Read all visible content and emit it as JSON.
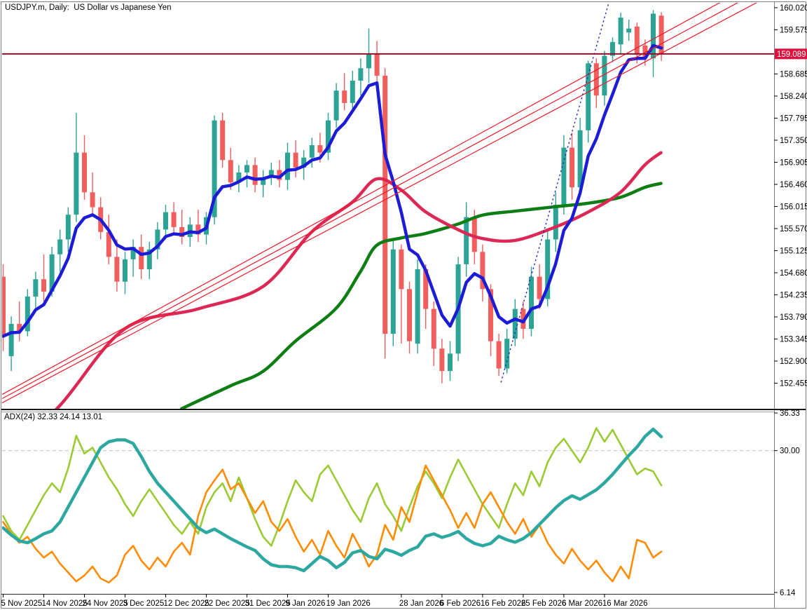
{
  "window": {
    "title": "USDJPY.m, Daily:  US Dollar vs Japanese Yen"
  },
  "indicator": {
    "label": "ADX(24) 32.33 24.14 13.01",
    "name": "ADX",
    "period": 24,
    "levels": {
      "max": "36.33",
      "mid": "30.00",
      "min": "6.14"
    }
  },
  "axes": {
    "price_ticks": [
      "160.020",
      "159.575",
      "158.685",
      "158.240",
      "157.795",
      "157.350",
      "156.905",
      "156.460",
      "156.015",
      "155.570",
      "155.125",
      "154.680",
      "154.235",
      "153.790",
      "153.345",
      "152.900",
      "152.455"
    ],
    "current_price": "159.089",
    "date_ticks": [
      {
        "label": "5 Nov 2025",
        "i": 0
      },
      {
        "label": "14 Nov 2025",
        "i": 5
      },
      {
        "label": "24 Nov 2025",
        "i": 10
      },
      {
        "label": "3 Dec 2025",
        "i": 15
      },
      {
        "label": "12 Dec 2025",
        "i": 20
      },
      {
        "label": "22 Dec 2025",
        "i": 25
      },
      {
        "label": "31 Dec 2025",
        "i": 30
      },
      {
        "label": "9 Jan 2026",
        "i": 35
      },
      {
        "label": "19 Jan 2026",
        "i": 40
      },
      {
        "label": "28 Jan 2026",
        "i": 49
      },
      {
        "label": "6 Feb 2026",
        "i": 54
      },
      {
        "label": "16 Feb 2026",
        "i": 59
      },
      {
        "label": "25 Feb 2026",
        "i": 64
      },
      {
        "label": "6 Mar 2026",
        "i": 69
      },
      {
        "label": "16 Mar 2026",
        "i": 74
      }
    ]
  },
  "colors": {
    "background": "#ffffff",
    "frame": "#7f7f7f",
    "separator": "#1a1a1a",
    "axis_text": "#000000",
    "candle_up": "#2ca394",
    "candle_down": "#f15e5e",
    "ma_fast": "#1c1cd6",
    "ma_mid": "#dc2855",
    "ma_slow": "#0e7d14",
    "channel": "#f01828",
    "dashed_trendline": "#2828c8",
    "hline": "#8c1126",
    "price_badge": "#de103c",
    "price_badge_text": "#ffffff",
    "adx_main": "#2ca8a0",
    "adx_plus_di": "#9acb32",
    "adx_minus_di": "#ff8c00",
    "level_dashed": "#c4c4c4"
  },
  "chart_data": {
    "type": "candlestick",
    "symbol": "USDJPY.m",
    "timeframe": "Daily",
    "description": "US Dollar vs Japanese Yen",
    "price_axis": {
      "min": 152.455,
      "max": 160.02,
      "tick_step": 0.445
    },
    "current_price": 159.089,
    "candles": [
      [
        154.6,
        154.85,
        153.1,
        153.4
      ],
      [
        153.0,
        153.8,
        152.7,
        153.65
      ],
      [
        153.65,
        154.1,
        153.3,
        153.5
      ],
      [
        153.5,
        154.35,
        153.4,
        154.2
      ],
      [
        154.2,
        154.7,
        153.9,
        154.55
      ],
      [
        154.55,
        155.05,
        154.1,
        154.3
      ],
      [
        154.3,
        155.2,
        154.2,
        155.05
      ],
      [
        155.05,
        155.55,
        154.7,
        155.35
      ],
      [
        155.35,
        156.0,
        155.1,
        155.85
      ],
      [
        155.85,
        157.9,
        155.7,
        157.1
      ],
      [
        157.1,
        157.45,
        156.15,
        156.3
      ],
      [
        156.3,
        156.7,
        155.85,
        156.0
      ],
      [
        156.0,
        156.2,
        155.35,
        155.5
      ],
      [
        155.5,
        155.85,
        154.85,
        155.0
      ],
      [
        155.0,
        155.35,
        154.3,
        154.5
      ],
      [
        154.5,
        155.1,
        154.25,
        154.95
      ],
      [
        154.95,
        155.35,
        154.6,
        155.2
      ],
      [
        155.2,
        155.45,
        154.55,
        154.75
      ],
      [
        154.75,
        155.3,
        154.55,
        155.15
      ],
      [
        155.15,
        155.7,
        154.95,
        155.55
      ],
      [
        155.55,
        156.05,
        155.35,
        155.9
      ],
      [
        155.9,
        156.1,
        155.45,
        155.6
      ],
      [
        155.6,
        155.95,
        155.25,
        155.4
      ],
      [
        155.4,
        155.8,
        155.2,
        155.65
      ],
      [
        155.65,
        155.95,
        155.3,
        155.45
      ],
      [
        155.45,
        155.9,
        155.25,
        155.8
      ],
      [
        155.8,
        157.85,
        155.65,
        157.75
      ],
      [
        157.75,
        157.9,
        156.8,
        156.95
      ],
      [
        156.95,
        157.2,
        156.35,
        156.5
      ],
      [
        156.5,
        156.85,
        156.3,
        156.7
      ],
      [
        156.7,
        156.95,
        156.4,
        156.85
      ],
      [
        156.85,
        157.0,
        156.3,
        156.45
      ],
      [
        156.45,
        156.75,
        156.2,
        156.6
      ],
      [
        156.6,
        156.9,
        156.45,
        156.75
      ],
      [
        156.75,
        156.95,
        156.4,
        156.55
      ],
      [
        156.55,
        157.3,
        156.35,
        157.1
      ],
      [
        157.1,
        157.35,
        156.6,
        156.8
      ],
      [
        156.8,
        157.15,
        156.55,
        157.0
      ],
      [
        157.0,
        157.4,
        156.8,
        157.25
      ],
      [
        157.25,
        157.5,
        156.9,
        157.1
      ],
      [
        157.1,
        157.9,
        156.95,
        157.75
      ],
      [
        157.75,
        158.5,
        157.6,
        158.35
      ],
      [
        158.35,
        158.7,
        157.95,
        158.1
      ],
      [
        158.1,
        158.75,
        157.9,
        158.55
      ],
      [
        158.55,
        159.0,
        158.25,
        158.8
      ],
      [
        158.8,
        159.6,
        158.5,
        159.1
      ],
      [
        159.1,
        159.35,
        158.45,
        158.65
      ],
      [
        158.65,
        158.8,
        152.95,
        153.45
      ],
      [
        153.45,
        155.35,
        153.2,
        155.15
      ],
      [
        155.15,
        155.25,
        153.25,
        154.35
      ],
      [
        154.35,
        154.5,
        153.05,
        153.3
      ],
      [
        153.25,
        154.95,
        153.05,
        154.75
      ],
      [
        154.75,
        154.85,
        153.55,
        153.95
      ],
      [
        153.95,
        154.1,
        152.8,
        153.15
      ],
      [
        153.15,
        153.35,
        152.45,
        152.7
      ],
      [
        152.7,
        153.3,
        152.5,
        153.05
      ],
      [
        153.05,
        155.0,
        152.9,
        154.85
      ],
      [
        154.85,
        156.1,
        154.6,
        155.8
      ],
      [
        155.8,
        155.95,
        154.85,
        155.1
      ],
      [
        155.1,
        155.25,
        154.1,
        154.35
      ],
      [
        154.35,
        154.45,
        153.0,
        153.3
      ],
      [
        153.3,
        153.45,
        152.6,
        152.75
      ],
      [
        152.75,
        153.55,
        152.65,
        153.35
      ],
      [
        153.35,
        154.15,
        153.2,
        153.95
      ],
      [
        153.95,
        154.1,
        153.35,
        153.55
      ],
      [
        153.55,
        154.8,
        153.4,
        154.6
      ],
      [
        154.6,
        154.85,
        153.95,
        154.15
      ],
      [
        154.15,
        155.55,
        154.0,
        155.35
      ],
      [
        155.35,
        156.3,
        155.1,
        156.05
      ],
      [
        156.05,
        157.45,
        155.85,
        157.2
      ],
      [
        157.2,
        157.5,
        156.15,
        156.4
      ],
      [
        156.4,
        157.8,
        156.25,
        157.55
      ],
      [
        157.55,
        158.95,
        157.3,
        158.9
      ],
      [
        158.9,
        159.0,
        158.0,
        158.25
      ],
      [
        158.25,
        159.15,
        158.05,
        159.05
      ],
      [
        159.05,
        159.42,
        158.92,
        159.33
      ],
      [
        159.28,
        159.92,
        159.1,
        159.82
      ],
      [
        159.52,
        159.78,
        159.35,
        159.6
      ],
      [
        159.64,
        159.72,
        158.9,
        159.07
      ],
      [
        159.26,
        159.38,
        158.85,
        159.0
      ],
      [
        159.0,
        159.97,
        158.62,
        159.9
      ],
      [
        159.86,
        159.93,
        158.95,
        159.089
      ]
    ],
    "overlays": {
      "ma_fast_blue": {
        "type": "ema_of_closes",
        "period": 6
      },
      "ma_mid_red": {
        "type": "anchors",
        "anchors": [
          [
            0,
            150.9
          ],
          [
            7,
            152.0
          ],
          [
            15,
            153.55
          ],
          [
            24,
            153.95
          ],
          [
            32,
            154.4
          ],
          [
            38,
            155.5
          ],
          [
            43,
            156.1
          ],
          [
            46,
            156.57
          ],
          [
            49,
            156.35
          ],
          [
            52,
            155.91
          ],
          [
            56,
            155.55
          ],
          [
            59,
            155.37
          ],
          [
            63,
            155.33
          ],
          [
            68,
            155.6
          ],
          [
            72,
            155.9
          ],
          [
            76,
            156.3
          ],
          [
            79,
            156.85
          ],
          [
            81,
            157.1
          ]
        ]
      },
      "ma_slow_green": {
        "type": "anchors",
        "anchors": [
          [
            22,
            151.94
          ],
          [
            28,
            152.4
          ],
          [
            32,
            152.69
          ],
          [
            36,
            153.3
          ],
          [
            41,
            153.96
          ],
          [
            44,
            154.7
          ],
          [
            46,
            155.23
          ],
          [
            49,
            155.38
          ],
          [
            52,
            155.47
          ],
          [
            56,
            155.66
          ],
          [
            59,
            155.84
          ],
          [
            63,
            155.92
          ],
          [
            68,
            156.01
          ],
          [
            72,
            156.08
          ],
          [
            76,
            156.2
          ],
          [
            79,
            156.4
          ],
          [
            81,
            156.48
          ]
        ]
      },
      "channel_lines": [
        {
          "p1": [
            0,
            152.235
          ],
          "p2": [
            81,
            159.475
          ]
        },
        {
          "p1": [
            0,
            152.151
          ],
          "p2": [
            81,
            159.289
          ]
        },
        {
          "p1": [
            0,
            152.066
          ],
          "p2": [
            81,
            159.1
          ]
        }
      ],
      "dashed_trendline": {
        "p1": [
          61.3,
          152.47
        ],
        "p2": [
          74.8,
          160.25
        ]
      },
      "hline": {
        "price": 159.089
      }
    },
    "adx": {
      "period": 24,
      "range": [
        6.14,
        36.33
      ],
      "level": 30,
      "current": {
        "adx": 32.33,
        "plus_di": 24.14,
        "minus_di": 13.01
      },
      "adx_values": [
        17.0,
        15.8,
        14.8,
        14.5,
        15.2,
        16.0,
        16.5,
        18.0,
        20.5,
        23.0,
        25.5,
        28.0,
        30.5,
        31.5,
        31.8,
        31.8,
        31.2,
        29.0,
        26.5,
        24.5,
        23.0,
        21.5,
        20.0,
        18.5,
        17.0,
        16.2,
        16.8,
        16.0,
        15.2,
        14.5,
        13.8,
        13.2,
        11.8,
        10.8,
        10.5,
        10.5,
        10.3,
        9.8,
        11.0,
        12.2,
        11.5,
        10.3,
        11.2,
        12.8,
        13.2,
        12.2,
        11.8,
        13.4,
        13.0,
        12.4,
        13.2,
        13.8,
        15.6,
        16.0,
        15.4,
        15.8,
        16.4,
        15.2,
        14.4,
        14.0,
        14.4,
        15.6,
        15.0,
        14.6,
        15.2,
        16.2,
        17.6,
        19.0,
        20.4,
        21.6,
        22.4,
        21.8,
        22.6,
        23.4,
        24.6,
        26.0,
        27.6,
        29.2,
        30.6,
        32.4,
        33.6,
        32.33
      ],
      "plus_di_values": [
        19.0,
        16.5,
        15.0,
        17.5,
        20.0,
        22.5,
        24.5,
        23.0,
        27.0,
        32.5,
        29.5,
        30.5,
        28.0,
        25.5,
        23.5,
        21.0,
        19.0,
        21.5,
        23.5,
        21.5,
        19.5,
        17.5,
        16.0,
        18.0,
        16.0,
        20.5,
        23.0,
        24.5,
        21.5,
        25.5,
        22.0,
        18.5,
        15.5,
        14.0,
        17.5,
        21.5,
        25.0,
        23.0,
        21.5,
        26.0,
        27.5,
        25.0,
        22.5,
        20.0,
        18.0,
        22.0,
        24.5,
        21.0,
        19.0,
        16.5,
        20.5,
        24.0,
        26.5,
        24.5,
        22.0,
        25.5,
        28.5,
        26.0,
        23.5,
        21.0,
        19.0,
        17.0,
        21.0,
        24.5,
        22.5,
        26.5,
        24.0,
        28.0,
        30.5,
        32.0,
        30.0,
        28.0,
        30.5,
        33.8,
        31.5,
        33.5,
        31.0,
        28.5,
        26.0,
        27.0,
        26.5,
        24.14
      ],
      "minus_di_values": [
        18.0,
        16.0,
        14.5,
        15.5,
        13.5,
        12.0,
        13.0,
        11.0,
        9.5,
        8.0,
        9.0,
        10.5,
        8.5,
        7.8,
        9.0,
        12.5,
        14.0,
        11.5,
        10.0,
        12.0,
        10.5,
        13.0,
        14.5,
        12.5,
        19.0,
        23.0,
        25.0,
        26.8,
        23.5,
        24.5,
        22.0,
        19.5,
        21.5,
        18.0,
        16.5,
        18.5,
        15.5,
        13.0,
        15.0,
        12.5,
        16.5,
        14.0,
        12.0,
        16.0,
        13.5,
        10.5,
        12.5,
        17.5,
        15.0,
        20.5,
        18.0,
        23.0,
        27.5,
        25.0,
        22.5,
        20.0,
        17.0,
        19.5,
        17.0,
        21.0,
        23.0,
        20.5,
        18.0,
        16.0,
        18.5,
        15.5,
        17.5,
        14.5,
        12.5,
        11.0,
        13.5,
        11.5,
        10.0,
        11.5,
        9.5,
        8.0,
        10.5,
        8.5,
        15.0,
        14.5,
        12.0,
        13.01
      ]
    }
  }
}
